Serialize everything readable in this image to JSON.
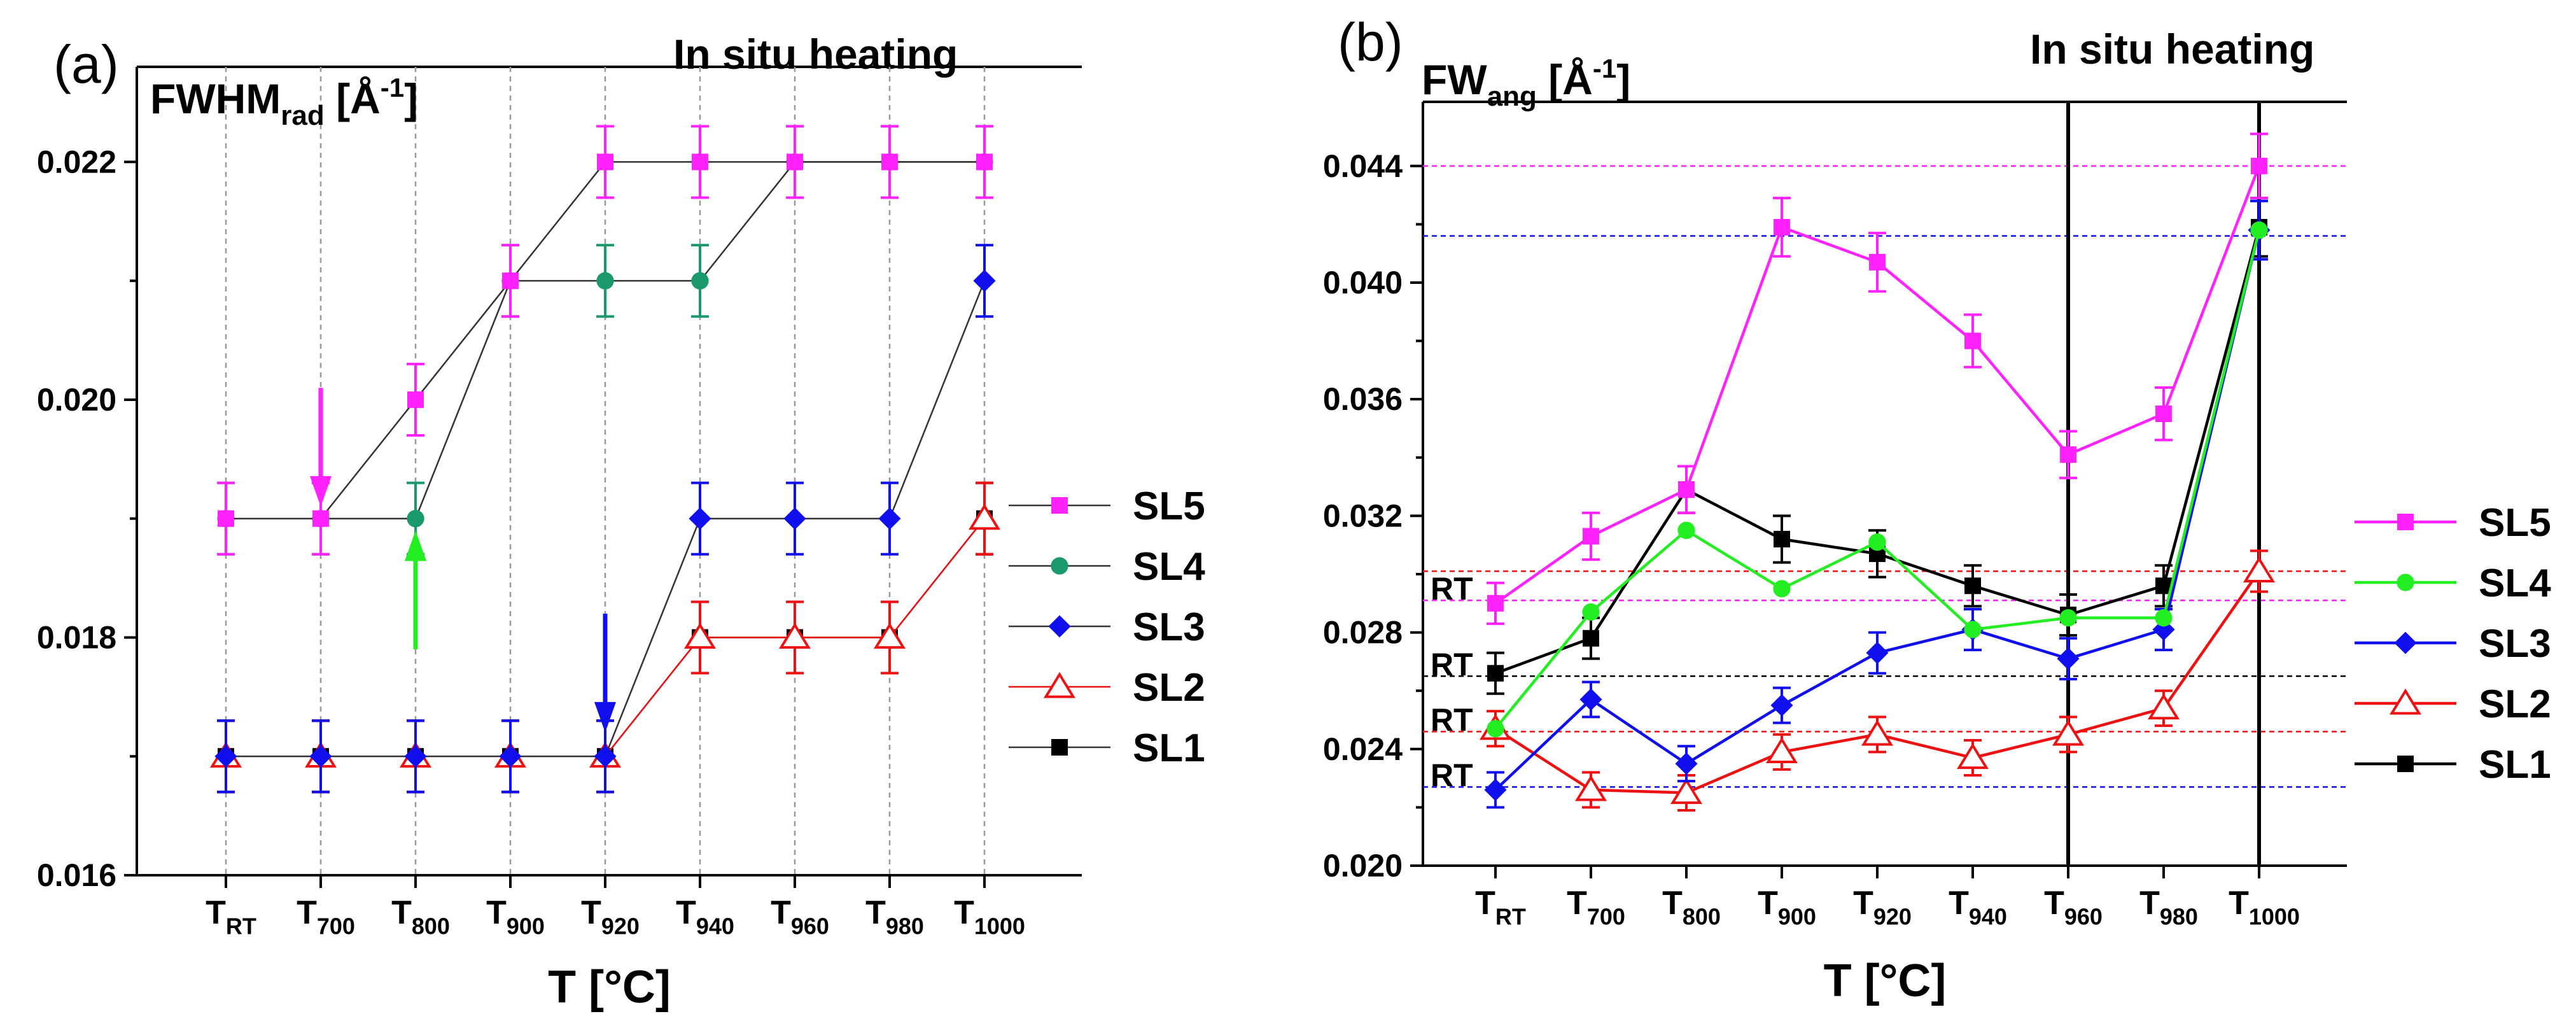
{
  "chart_data": [
    {
      "panel_label": "(a)",
      "type": "line",
      "title": "In situ heating",
      "ylabel_main": "FWHM",
      "ylabel_sub": "rad",
      "ylabel_unit_pre": " [Å",
      "ylabel_unit_exp": "-1",
      "ylabel_unit_post": "]",
      "xlabel": "T [°C]",
      "categories": [
        {
          "base": "T",
          "sub": "RT"
        },
        {
          "base": "T",
          "sub": "700"
        },
        {
          "base": "T",
          "sub": "800"
        },
        {
          "base": "T",
          "sub": "900"
        },
        {
          "base": "T",
          "sub": "920"
        },
        {
          "base": "T",
          "sub": "940"
        },
        {
          "base": "T",
          "sub": "960"
        },
        {
          "base": "T",
          "sub": "980"
        },
        {
          "base": "T",
          "sub": "1000"
        }
      ],
      "ylim": [
        0.016,
        0.0228
      ],
      "yticks": [
        {
          "value": 0.016,
          "label": "0.016"
        },
        {
          "value": 0.018,
          "label": "0.018"
        },
        {
          "value": 0.02,
          "label": "0.020"
        },
        {
          "value": 0.022,
          "label": "0.022"
        }
      ],
      "error": 0.0003,
      "series": [
        {
          "name": "SL5",
          "color": "#ff22ff",
          "marker": "square",
          "values": [
            0.019,
            0.019,
            0.02,
            0.021,
            0.022,
            0.022,
            0.022,
            0.022,
            0.022
          ]
        },
        {
          "name": "SL4",
          "color": "#1a9a6a",
          "marker": "circle",
          "values": [
            0.019,
            0.019,
            0.019,
            0.021,
            0.021,
            0.021,
            0.022,
            0.022,
            0.022
          ]
        },
        {
          "name": "SL3",
          "color": "#1010ee",
          "marker": "diamond",
          "values": [
            0.017,
            0.017,
            0.017,
            0.017,
            0.017,
            0.019,
            0.019,
            0.019,
            0.021
          ]
        },
        {
          "name": "SL2",
          "color": "#ee1111",
          "marker": "triangle",
          "values": [
            0.017,
            0.017,
            0.017,
            0.017,
            0.017,
            0.018,
            0.018,
            0.018,
            0.019
          ]
        },
        {
          "name": "SL1",
          "color": "#000000",
          "marker": "square",
          "values": [
            0.017,
            0.017,
            0.017,
            0.017,
            0.017,
            0.018,
            0.018,
            0.018,
            0.019
          ]
        }
      ],
      "line_color": "#333333",
      "arrows": [
        {
          "color": "#ff22ff",
          "x_index": 1,
          "direction": "down",
          "from": 0.0201,
          "to": 0.0191
        },
        {
          "color": "#22ee22",
          "x_index": 2,
          "direction": "up",
          "from": 0.0179,
          "to": 0.0189
        },
        {
          "color": "#1010ee",
          "x_index": 4,
          "direction": "down",
          "from": 0.0182,
          "to": 0.0172
        }
      ]
    },
    {
      "panel_label": "(b)",
      "type": "line",
      "title": "In situ heating",
      "ylabel_main": "FW",
      "ylabel_sub": "ang",
      "ylabel_unit_pre": " [Å",
      "ylabel_unit_exp": "-1",
      "ylabel_unit_post": "]",
      "xlabel": "T [°C]",
      "categories": [
        {
          "base": "T",
          "sub": "RT"
        },
        {
          "base": "T",
          "sub": "700"
        },
        {
          "base": "T",
          "sub": "800"
        },
        {
          "base": "T",
          "sub": "900"
        },
        {
          "base": "T",
          "sub": "920"
        },
        {
          "base": "T",
          "sub": "940"
        },
        {
          "base": "T",
          "sub": "960"
        },
        {
          "base": "T",
          "sub": "980"
        },
        {
          "base": "T",
          "sub": "1000"
        }
      ],
      "ylim": [
        0.02,
        0.0462
      ],
      "yticks": [
        {
          "value": 0.02,
          "label": "0.020"
        },
        {
          "value": 0.024,
          "label": "0.024"
        },
        {
          "value": 0.028,
          "label": "0.028"
        },
        {
          "value": 0.032,
          "label": "0.032"
        },
        {
          "value": 0.036,
          "label": "0.036"
        },
        {
          "value": 0.04,
          "label": "0.040"
        },
        {
          "value": 0.044,
          "label": "0.044"
        }
      ],
      "vertical_lines_at_index": [
        6,
        8
      ],
      "reference_lines": [
        {
          "value": 0.044,
          "color": "#ff22ff"
        },
        {
          "value": 0.0416,
          "color": "#1010ee"
        },
        {
          "value": 0.0301,
          "color": "#ee1111"
        },
        {
          "value": 0.0291,
          "color": "#ff22ff"
        },
        {
          "value": 0.0265,
          "color": "#000000"
        },
        {
          "value": 0.0246,
          "color": "#ee1111"
        },
        {
          "value": 0.0227,
          "color": "#1010ee"
        }
      ],
      "rt_labels": [
        {
          "text": "RT",
          "color": "#ff22ff",
          "value": 0.0293
        },
        {
          "text": "RT",
          "color": "#000000",
          "value": 0.0267
        },
        {
          "text": "RT",
          "color": "#ee1111",
          "value": 0.0248
        },
        {
          "text": "RT",
          "color": "#1010ee",
          "value": 0.0229
        }
      ],
      "series": [
        {
          "name": "SL5",
          "color": "#ff22ff",
          "marker": "square",
          "values": [
            0.029,
            0.0313,
            0.0329,
            0.0419,
            0.0407,
            0.038,
            0.0341,
            0.0355,
            0.044
          ],
          "errors": [
            0.0007,
            0.0008,
            0.0008,
            0.001,
            0.001,
            0.0009,
            0.0008,
            0.0009,
            0.0011
          ]
        },
        {
          "name": "SL4",
          "color": "#22ee22",
          "marker": "circle",
          "values": [
            0.0247,
            0.0287,
            0.0315,
            0.0295,
            0.0311,
            0.0281,
            0.0285,
            0.0285,
            0.0418
          ],
          "errors": [
            0.0,
            0.0,
            0.0,
            0.0,
            0.0,
            0.0,
            0.0,
            0.0,
            0.0
          ]
        },
        {
          "name": "SL3",
          "color": "#1010ee",
          "marker": "diamond",
          "values": [
            0.0226,
            0.0257,
            0.0235,
            0.0255,
            0.0273,
            0.0281,
            0.0271,
            0.0281,
            0.0418
          ],
          "errors": [
            0.0006,
            0.0006,
            0.0006,
            0.0006,
            0.0007,
            0.0007,
            0.0007,
            0.0007,
            0.001
          ]
        },
        {
          "name": "SL2",
          "color": "#ee1111",
          "marker": "triangle",
          "values": [
            0.0247,
            0.0226,
            0.0225,
            0.0239,
            0.0245,
            0.0237,
            0.0245,
            0.0254,
            0.0301
          ],
          "errors": [
            0.0006,
            0.0006,
            0.0006,
            0.0006,
            0.0006,
            0.0006,
            0.0006,
            0.0006,
            0.0007
          ]
        },
        {
          "name": "SL1",
          "color": "#000000",
          "marker": "square",
          "values": [
            0.0266,
            0.0278,
            0.0329,
            0.0312,
            0.0307,
            0.0296,
            0.0286,
            0.0296,
            0.0419
          ],
          "errors": [
            0.0007,
            0.0007,
            0.0008,
            0.0008,
            0.0008,
            0.0007,
            0.0007,
            0.0007,
            0.001
          ]
        }
      ]
    }
  ]
}
